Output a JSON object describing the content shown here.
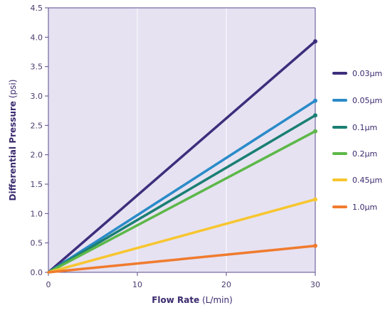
{
  "chart_data": {
    "type": "line",
    "xlabel_bold": "Flow Rate",
    "xlabel_unit": "(L/min)",
    "ylabel_bold": "Differential Pressure",
    "ylabel_unit": "(psi)",
    "xlim": [
      0,
      30
    ],
    "ylim": [
      0,
      4.5
    ],
    "x_ticks": [
      0,
      10,
      20,
      30
    ],
    "y_ticks": [
      "0.0",
      "0.5",
      "1.0",
      "1.5",
      "2.0",
      "2.5",
      "3.0",
      "3.5",
      "4.0",
      "4.5"
    ],
    "y_tick_values": [
      0,
      0.5,
      1.0,
      1.5,
      2.0,
      2.5,
      3.0,
      3.5,
      4.0,
      4.5
    ],
    "grid": "vertical",
    "legend_position": "right",
    "colors": {
      "plot_background": "#e6e2f2",
      "axis": "#5b4a8b",
      "grid": "#ffffff"
    },
    "series": [
      {
        "name": "0.03µm",
        "color": "#3d2e7c",
        "x": [
          0,
          30
        ],
        "y": [
          0.0,
          3.93
        ]
      },
      {
        "name": "0.05µm",
        "color": "#2a8bc8",
        "x": [
          0,
          30
        ],
        "y": [
          0.0,
          2.92
        ]
      },
      {
        "name": "0.1µm",
        "color": "#1a7f73",
        "x": [
          0,
          30
        ],
        "y": [
          0.0,
          2.67
        ]
      },
      {
        "name": "0.2µm",
        "color": "#5cb848",
        "x": [
          0,
          30
        ],
        "y": [
          0.0,
          2.4
        ]
      },
      {
        "name": "0.45µm",
        "color": "#f7c62f",
        "x": [
          0,
          30
        ],
        "y": [
          0.0,
          1.24
        ]
      },
      {
        "name": "1.0µm",
        "color": "#f07b2e",
        "x": [
          0,
          30
        ],
        "y": [
          0.0,
          0.45
        ]
      }
    ]
  }
}
